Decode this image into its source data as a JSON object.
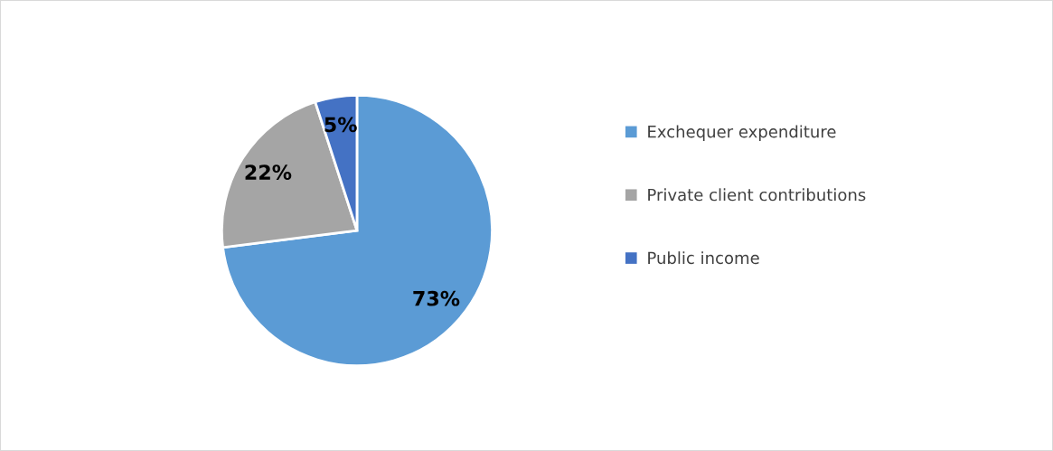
{
  "chart_data": {
    "type": "pie",
    "categories": [
      "Exchequer expenditure",
      "Private client contributions",
      "Public income"
    ],
    "values": [
      73,
      22,
      5
    ],
    "colors": [
      "#5b9bd5",
      "#a5a5a5",
      "#4472c4"
    ],
    "value_labels": [
      "73%",
      "22%",
      "5%"
    ],
    "legend": "right"
  }
}
